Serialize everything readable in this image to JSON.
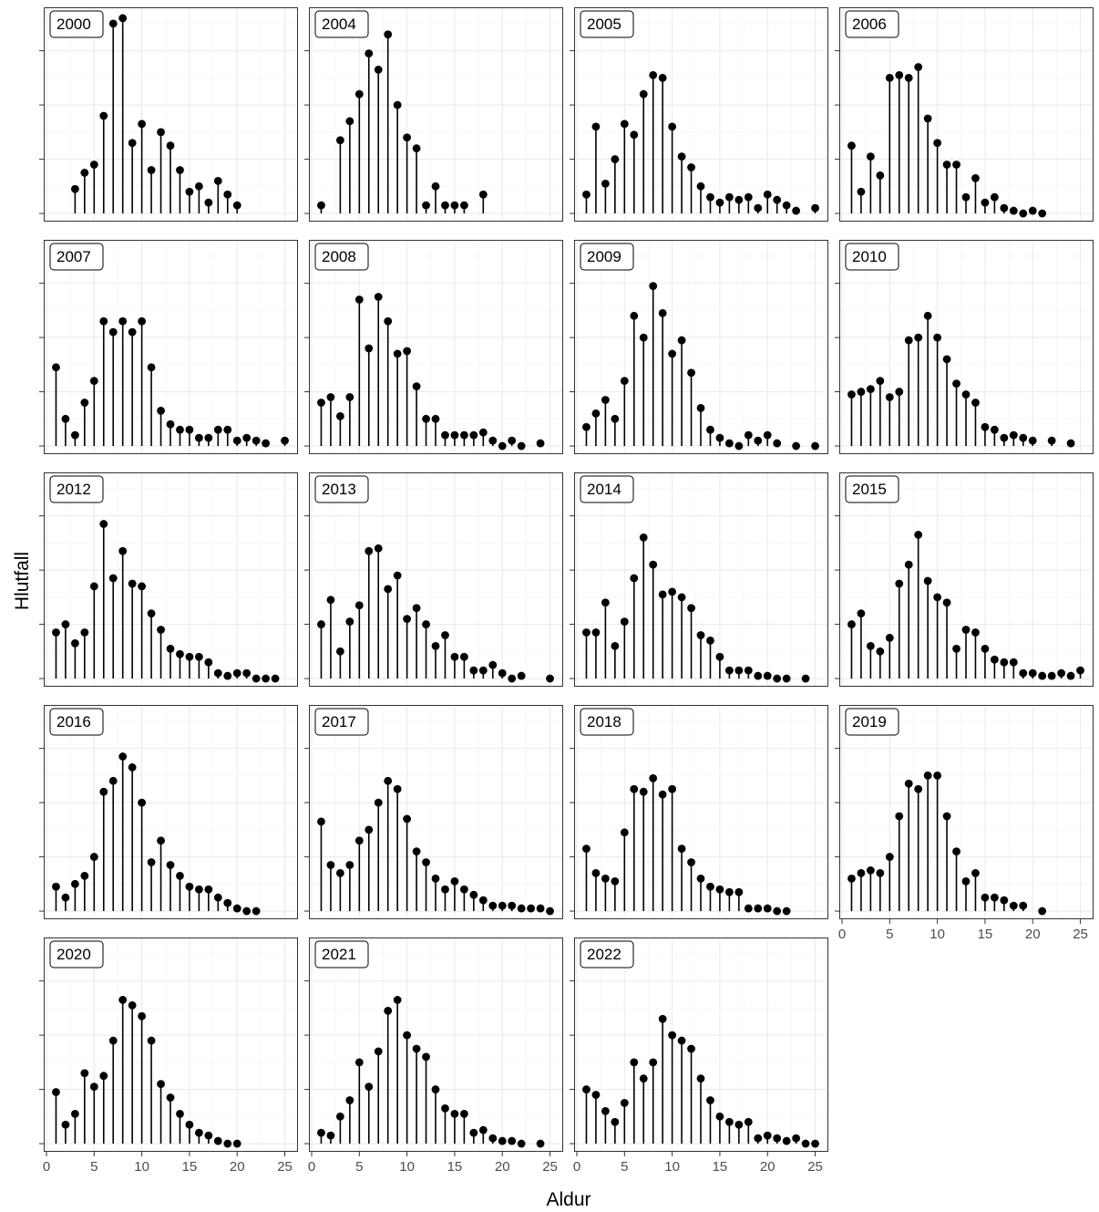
{
  "chart_data": {
    "type": "lollipop",
    "facet_by": "year",
    "xlabel": "Aldur",
    "ylabel": "Hlutfall",
    "xlim": [
      0,
      26
    ],
    "x_ticks": [
      0,
      5,
      10,
      15,
      20,
      25
    ],
    "y_ticks": [
      0,
      1,
      2,
      3
    ],
    "y_tick_labels_shown": false,
    "grid": true,
    "facets": [
      {
        "label": "2000",
        "ylim": [
          -0.1,
          3.7
        ],
        "x": [
          3,
          4,
          5,
          6,
          7,
          8,
          9,
          10,
          11,
          12,
          13,
          14,
          15,
          16,
          17,
          18,
          19,
          20
        ],
        "y": [
          0.45,
          0.75,
          0.9,
          1.8,
          3.5,
          3.6,
          1.3,
          1.65,
          0.8,
          1.5,
          1.25,
          0.8,
          0.4,
          0.5,
          0.2,
          0.6,
          0.35,
          0.15
        ]
      },
      {
        "label": "2004",
        "ylim": [
          -0.1,
          3.7
        ],
        "x": [
          1,
          3,
          4,
          5,
          6,
          7,
          8,
          9,
          10,
          11,
          12,
          13,
          14,
          15,
          16,
          18
        ],
        "y": [
          0.15,
          1.35,
          1.7,
          2.2,
          2.95,
          2.65,
          3.3,
          2.0,
          1.4,
          1.2,
          0.15,
          0.5,
          0.15,
          0.15,
          0.15,
          0.35
        ]
      },
      {
        "label": "2005",
        "ylim": [
          -0.1,
          3.7
        ],
        "x": [
          1,
          2,
          3,
          4,
          5,
          6,
          7,
          8,
          9,
          10,
          11,
          12,
          13,
          14,
          15,
          16,
          17,
          18,
          19,
          20,
          21,
          22,
          23,
          25
        ],
        "y": [
          0.35,
          1.6,
          0.55,
          1.0,
          1.65,
          1.45,
          2.2,
          2.55,
          2.5,
          1.6,
          1.05,
          0.85,
          0.5,
          0.3,
          0.2,
          0.3,
          0.25,
          0.3,
          0.1,
          0.35,
          0.25,
          0.15,
          0.05,
          0.1
        ]
      },
      {
        "label": "2006",
        "ylim": [
          -0.1,
          3.7
        ],
        "x": [
          1,
          2,
          3,
          4,
          5,
          6,
          7,
          8,
          9,
          10,
          11,
          12,
          13,
          14,
          15,
          16,
          17,
          18,
          19,
          20,
          21
        ],
        "y": [
          1.25,
          0.4,
          1.05,
          0.7,
          2.5,
          2.55,
          2.5,
          2.7,
          1.75,
          1.3,
          0.9,
          0.9,
          0.3,
          0.65,
          0.2,
          0.3,
          0.1,
          0.05,
          0.0,
          0.05,
          0.0
        ]
      },
      {
        "label": "2007",
        "ylim": [
          -0.1,
          3.7
        ],
        "x": [
          1,
          2,
          3,
          4,
          5,
          6,
          7,
          8,
          9,
          10,
          11,
          12,
          13,
          14,
          15,
          16,
          17,
          18,
          19,
          20,
          21,
          22,
          23,
          25
        ],
        "y": [
          1.45,
          0.5,
          0.2,
          0.8,
          1.2,
          2.3,
          2.1,
          2.3,
          2.1,
          2.3,
          1.45,
          0.65,
          0.4,
          0.3,
          0.3,
          0.15,
          0.15,
          0.3,
          0.3,
          0.1,
          0.15,
          0.1,
          0.05,
          0.1
        ]
      },
      {
        "label": "2008",
        "ylim": [
          -0.1,
          3.7
        ],
        "x": [
          1,
          2,
          3,
          4,
          5,
          6,
          7,
          8,
          9,
          10,
          11,
          12,
          13,
          14,
          15,
          16,
          17,
          18,
          19,
          20,
          21,
          22,
          24
        ],
        "y": [
          0.8,
          0.9,
          0.55,
          0.9,
          2.7,
          1.8,
          2.75,
          2.3,
          1.7,
          1.75,
          1.1,
          0.5,
          0.5,
          0.2,
          0.2,
          0.2,
          0.2,
          0.25,
          0.1,
          0.0,
          0.1,
          0.0,
          0.05
        ]
      },
      {
        "label": "2009",
        "ylim": [
          -0.1,
          3.7
        ],
        "x": [
          1,
          2,
          3,
          4,
          5,
          6,
          7,
          8,
          9,
          10,
          11,
          12,
          13,
          14,
          15,
          16,
          17,
          18,
          19,
          20,
          21,
          23,
          25
        ],
        "y": [
          0.35,
          0.6,
          0.85,
          0.5,
          1.2,
          2.4,
          2.0,
          2.95,
          2.45,
          1.7,
          1.95,
          1.35,
          0.7,
          0.3,
          0.15,
          0.05,
          0.0,
          0.2,
          0.1,
          0.2,
          0.05,
          0.0,
          0.0
        ]
      },
      {
        "label": "2010",
        "ylim": [
          -0.1,
          3.7
        ],
        "x": [
          1,
          2,
          3,
          4,
          5,
          6,
          7,
          8,
          9,
          10,
          11,
          12,
          13,
          14,
          15,
          16,
          17,
          18,
          19,
          20,
          22,
          24
        ],
        "y": [
          0.95,
          1.0,
          1.05,
          1.2,
          0.9,
          1.0,
          1.95,
          2.0,
          2.4,
          2.0,
          1.6,
          1.15,
          0.95,
          0.8,
          0.35,
          0.3,
          0.15,
          0.2,
          0.15,
          0.1,
          0.1,
          0.05
        ]
      },
      {
        "label": "2012",
        "ylim": [
          -0.1,
          3.7
        ],
        "x": [
          1,
          2,
          3,
          4,
          5,
          6,
          7,
          8,
          9,
          10,
          11,
          12,
          13,
          14,
          15,
          16,
          17,
          18,
          19,
          20,
          21,
          22,
          23,
          24
        ],
        "y": [
          0.85,
          1.0,
          0.65,
          0.85,
          1.7,
          2.85,
          1.85,
          2.35,
          1.75,
          1.7,
          1.2,
          0.9,
          0.55,
          0.45,
          0.4,
          0.4,
          0.3,
          0.1,
          0.05,
          0.1,
          0.1,
          0.0,
          0.0,
          0.0
        ]
      },
      {
        "label": "2013",
        "ylim": [
          -0.1,
          3.7
        ],
        "x": [
          1,
          2,
          3,
          4,
          5,
          6,
          7,
          8,
          9,
          10,
          11,
          12,
          13,
          14,
          15,
          16,
          17,
          18,
          19,
          20,
          21,
          22,
          25
        ],
        "y": [
          1.0,
          1.45,
          0.5,
          1.05,
          1.35,
          2.35,
          2.4,
          1.65,
          1.9,
          1.1,
          1.3,
          1.0,
          0.6,
          0.8,
          0.4,
          0.4,
          0.15,
          0.15,
          0.25,
          0.1,
          0.0,
          0.05,
          0.0
        ]
      },
      {
        "label": "2014",
        "ylim": [
          -0.1,
          3.7
        ],
        "x": [
          1,
          2,
          3,
          4,
          5,
          6,
          7,
          8,
          9,
          10,
          11,
          12,
          13,
          14,
          15,
          16,
          17,
          18,
          19,
          20,
          21,
          22,
          24
        ],
        "y": [
          0.85,
          0.85,
          1.4,
          0.6,
          1.05,
          1.85,
          2.6,
          2.1,
          1.55,
          1.6,
          1.5,
          1.3,
          0.8,
          0.7,
          0.4,
          0.15,
          0.15,
          0.15,
          0.05,
          0.05,
          0.0,
          0.0,
          0.0
        ]
      },
      {
        "label": "2015",
        "ylim": [
          -0.1,
          3.7
        ],
        "x": [
          1,
          2,
          3,
          4,
          5,
          6,
          7,
          8,
          9,
          10,
          11,
          12,
          13,
          14,
          15,
          16,
          17,
          18,
          19,
          20,
          21,
          22,
          23,
          24,
          25
        ],
        "y": [
          1.0,
          1.2,
          0.6,
          0.5,
          0.75,
          1.75,
          2.1,
          2.65,
          1.8,
          1.5,
          1.4,
          0.55,
          0.9,
          0.85,
          0.55,
          0.35,
          0.3,
          0.3,
          0.1,
          0.1,
          0.05,
          0.05,
          0.1,
          0.05,
          0.15
        ]
      },
      {
        "label": "2016",
        "ylim": [
          -0.1,
          3.7
        ],
        "x": [
          1,
          2,
          3,
          4,
          5,
          6,
          7,
          8,
          9,
          10,
          11,
          12,
          13,
          14,
          15,
          16,
          17,
          18,
          19,
          20,
          21,
          22
        ],
        "y": [
          0.45,
          0.25,
          0.5,
          0.65,
          1.0,
          2.2,
          2.4,
          2.85,
          2.65,
          2.0,
          0.9,
          1.3,
          0.85,
          0.65,
          0.45,
          0.4,
          0.4,
          0.25,
          0.15,
          0.05,
          0.0,
          0.0
        ]
      },
      {
        "label": "2017",
        "ylim": [
          -0.1,
          3.7
        ],
        "x": [
          1,
          2,
          3,
          4,
          5,
          6,
          7,
          8,
          9,
          10,
          11,
          12,
          13,
          14,
          15,
          16,
          17,
          18,
          19,
          20,
          21,
          22,
          23,
          24,
          25
        ],
        "y": [
          1.65,
          0.85,
          0.7,
          0.85,
          1.3,
          1.5,
          2.0,
          2.4,
          2.25,
          1.7,
          1.1,
          0.9,
          0.6,
          0.4,
          0.55,
          0.4,
          0.3,
          0.2,
          0.1,
          0.1,
          0.1,
          0.05,
          0.05,
          0.05,
          0.0
        ]
      },
      {
        "label": "2018",
        "ylim": [
          -0.1,
          3.7
        ],
        "x": [
          1,
          2,
          3,
          4,
          5,
          6,
          7,
          8,
          9,
          10,
          11,
          12,
          13,
          14,
          15,
          16,
          17,
          18,
          19,
          20,
          21,
          22
        ],
        "y": [
          1.15,
          0.7,
          0.6,
          0.55,
          1.45,
          2.25,
          2.2,
          2.45,
          2.15,
          2.25,
          1.15,
          0.9,
          0.6,
          0.45,
          0.4,
          0.35,
          0.35,
          0.05,
          0.05,
          0.05,
          0.0,
          0.0
        ]
      },
      {
        "label": "2019",
        "ylim": [
          -0.1,
          3.7
        ],
        "x": [
          1,
          2,
          3,
          4,
          5,
          6,
          7,
          8,
          9,
          10,
          11,
          12,
          13,
          14,
          15,
          16,
          17,
          18,
          19,
          21
        ],
        "y": [
          0.6,
          0.7,
          0.75,
          0.7,
          1.0,
          1.75,
          2.35,
          2.25,
          2.5,
          2.5,
          1.75,
          1.1,
          0.55,
          0.7,
          0.25,
          0.25,
          0.2,
          0.1,
          0.1,
          0.0
        ]
      },
      {
        "label": "2020",
        "ylim": [
          -0.1,
          3.7
        ],
        "x": [
          1,
          2,
          3,
          4,
          5,
          6,
          7,
          8,
          9,
          10,
          11,
          12,
          13,
          14,
          15,
          16,
          17,
          18,
          19,
          20
        ],
        "y": [
          0.95,
          0.35,
          0.55,
          1.3,
          1.05,
          1.25,
          1.9,
          2.65,
          2.55,
          2.35,
          1.9,
          1.1,
          0.85,
          0.55,
          0.35,
          0.2,
          0.15,
          0.05,
          0.0,
          0.0
        ]
      },
      {
        "label": "2021",
        "ylim": [
          -0.1,
          3.7
        ],
        "x": [
          1,
          2,
          3,
          4,
          5,
          6,
          7,
          8,
          9,
          10,
          11,
          12,
          13,
          14,
          15,
          16,
          17,
          18,
          19,
          20,
          21,
          22,
          24
        ],
        "y": [
          0.2,
          0.15,
          0.5,
          0.8,
          1.5,
          1.05,
          1.7,
          2.45,
          2.65,
          2.0,
          1.75,
          1.6,
          1.0,
          0.65,
          0.55,
          0.55,
          0.2,
          0.25,
          0.1,
          0.05,
          0.05,
          0.0,
          0.0
        ]
      },
      {
        "label": "2022",
        "ylim": [
          -0.1,
          3.7
        ],
        "x": [
          1,
          2,
          3,
          4,
          5,
          6,
          7,
          8,
          9,
          10,
          11,
          12,
          13,
          14,
          15,
          16,
          17,
          18,
          19,
          20,
          21,
          22,
          23,
          24,
          25
        ],
        "y": [
          1.0,
          0.9,
          0.6,
          0.4,
          0.75,
          1.5,
          1.2,
          1.5,
          2.3,
          2.0,
          1.9,
          1.75,
          1.2,
          0.8,
          0.5,
          0.4,
          0.35,
          0.4,
          0.1,
          0.15,
          0.1,
          0.05,
          0.1,
          0.0,
          0.0
        ]
      }
    ]
  }
}
